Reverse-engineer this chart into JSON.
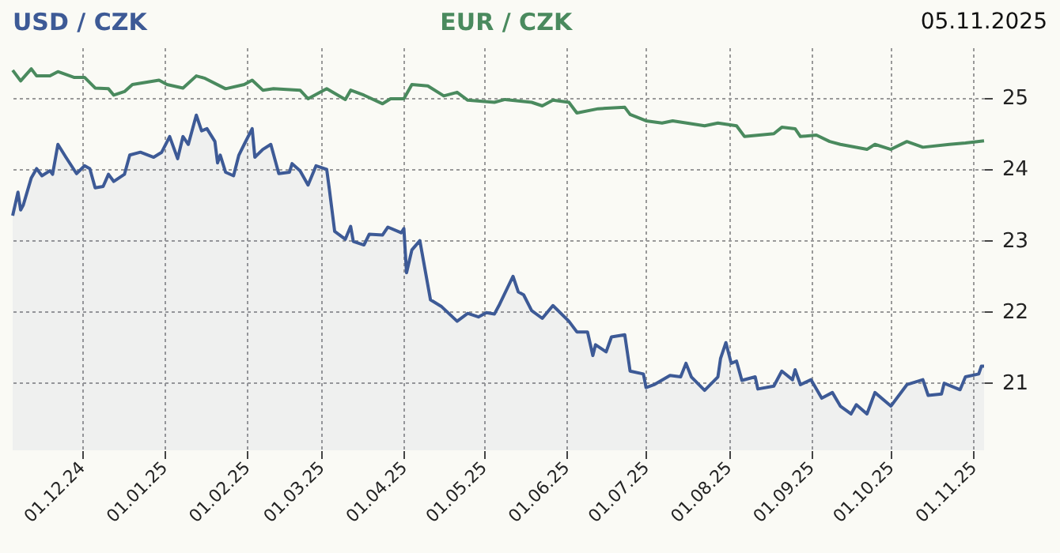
{
  "chart_data": {
    "type": "line",
    "title": "05.11.2025",
    "xlim": [
      "2024-11-05",
      "2025-11-05"
    ],
    "xticks": [
      {
        "value": "2024-12-01",
        "label": "01.12.24"
      },
      {
        "value": "2025-01-01",
        "label": "01.01.25"
      },
      {
        "value": "2025-02-01",
        "label": "01.02.25"
      },
      {
        "value": "2025-03-01",
        "label": "01.03.25"
      },
      {
        "value": "2025-04-01",
        "label": "01.04.25"
      },
      {
        "value": "2025-05-01",
        "label": "01.05.25"
      },
      {
        "value": "2025-06-01",
        "label": "01.06.25"
      },
      {
        "value": "2025-07-01",
        "label": "01.07.25"
      },
      {
        "value": "2025-08-01",
        "label": "01.08.25"
      },
      {
        "value": "2025-09-01",
        "label": "01.09.25"
      },
      {
        "value": "2025-10-01",
        "label": "01.10.25"
      },
      {
        "value": "2025-11-01",
        "label": "01.11.25"
      }
    ],
    "ylim": [
      20.05,
      25.7
    ],
    "yticks": [
      21,
      22,
      23,
      24,
      25
    ],
    "grid": true,
    "legend": "top",
    "marker": "none",
    "line_style": "solid",
    "series": [
      {
        "name": "USD / CZK",
        "type": "area",
        "color": "#3d5a96",
        "x": [
          "2024-11-05",
          "2024-11-07",
          "2024-11-08",
          "2024-11-09",
          "2024-11-12",
          "2024-11-14",
          "2024-11-16",
          "2024-11-19",
          "2024-11-20",
          "2024-11-22",
          "2024-11-25",
          "2024-11-29",
          "2024-12-02",
          "2024-12-04",
          "2024-12-06",
          "2024-12-09",
          "2024-12-11",
          "2024-12-13",
          "2024-12-17",
          "2024-12-19",
          "2024-12-23",
          "2024-12-28",
          "2024-12-31",
          "2025-01-03",
          "2025-01-06",
          "2025-01-08",
          "2025-01-10",
          "2025-01-13",
          "2025-01-15",
          "2025-01-17",
          "2025-01-20",
          "2025-01-21",
          "2025-01-22",
          "2025-01-24",
          "2025-01-27",
          "2025-01-29",
          "2025-01-31",
          "2025-02-03",
          "2025-02-04",
          "2025-02-07",
          "2025-02-10",
          "2025-02-13",
          "2025-02-17",
          "2025-02-18",
          "2025-02-21",
          "2025-02-24",
          "2025-02-27",
          "2025-03-03",
          "2025-03-04",
          "2025-03-06",
          "2025-03-10",
          "2025-03-12",
          "2025-03-13",
          "2025-03-17",
          "2025-03-19",
          "2025-03-24",
          "2025-03-26",
          "2025-03-31",
          "2025-04-01",
          "2025-04-02",
          "2025-04-04",
          "2025-04-07",
          "2025-04-11",
          "2025-04-15",
          "2025-04-21",
          "2025-04-25",
          "2025-04-29",
          "2025-05-02",
          "2025-05-05",
          "2025-05-07",
          "2025-05-12",
          "2025-05-14",
          "2025-05-16",
          "2025-05-19",
          "2025-05-23",
          "2025-05-27",
          "2025-06-02",
          "2025-06-05",
          "2025-06-09",
          "2025-06-11",
          "2025-06-12",
          "2025-06-16",
          "2025-06-18",
          "2025-06-23",
          "2025-06-25",
          "2025-06-30",
          "2025-07-01",
          "2025-07-04",
          "2025-07-10",
          "2025-07-14",
          "2025-07-16",
          "2025-07-18",
          "2025-07-23",
          "2025-07-28",
          "2025-07-29",
          "2025-07-31",
          "2025-08-02",
          "2025-08-04",
          "2025-08-06",
          "2025-08-11",
          "2025-08-12",
          "2025-08-18",
          "2025-08-21",
          "2025-08-25",
          "2025-08-26",
          "2025-08-28",
          "2025-09-01",
          "2025-09-05",
          "2025-09-09",
          "2025-09-12",
          "2025-09-16",
          "2025-09-18",
          "2025-09-22",
          "2025-09-25",
          "2025-10-01",
          "2025-10-07",
          "2025-10-13",
          "2025-10-15",
          "2025-10-20",
          "2025-10-21",
          "2025-10-27",
          "2025-10-29",
          "2025-11-03",
          "2025-11-04",
          "2025-11-05"
        ],
        "values": [
          23.34,
          23.67,
          23.42,
          23.49,
          23.87,
          24.0,
          23.9,
          23.97,
          23.92,
          24.34,
          24.16,
          23.93,
          24.04,
          24.0,
          23.73,
          23.75,
          23.92,
          23.82,
          23.92,
          24.19,
          24.23,
          24.16,
          24.23,
          24.45,
          24.14,
          24.45,
          24.34,
          24.75,
          24.53,
          24.56,
          24.38,
          24.08,
          24.19,
          23.95,
          23.9,
          24.19,
          24.34,
          24.56,
          24.16,
          24.27,
          24.34,
          23.93,
          23.95,
          24.07,
          23.97,
          23.77,
          24.04,
          23.99,
          23.71,
          23.12,
          23.01,
          23.19,
          22.98,
          22.93,
          23.08,
          23.07,
          23.18,
          23.1,
          23.16,
          22.54,
          22.86,
          22.99,
          22.16,
          22.07,
          21.86,
          21.97,
          21.92,
          21.98,
          21.96,
          22.1,
          22.49,
          22.27,
          22.23,
          22.01,
          21.9,
          22.08,
          21.86,
          21.71,
          21.71,
          21.38,
          21.53,
          21.43,
          21.64,
          21.67,
          21.16,
          21.12,
          20.93,
          20.97,
          21.1,
          21.08,
          21.27,
          21.08,
          20.89,
          21.08,
          21.34,
          21.56,
          21.27,
          21.3,
          21.03,
          21.08,
          20.91,
          20.95,
          21.16,
          21.04,
          21.18,
          20.97,
          21.04,
          20.78,
          20.86,
          20.67,
          20.56,
          20.69,
          20.56,
          20.86,
          20.67,
          20.97,
          21.04,
          20.82,
          20.84,
          20.99,
          20.9,
          21.08,
          21.12,
          21.23,
          21.23
        ]
      },
      {
        "name": "EUR / CZK",
        "type": "line",
        "color": "#4a8a5e",
        "x": [
          "2024-11-05",
          "2024-11-08",
          "2024-11-12",
          "2024-11-14",
          "2024-11-19",
          "2024-11-22",
          "2024-11-28",
          "2024-12-02",
          "2024-12-06",
          "2024-12-11",
          "2024-12-13",
          "2024-12-17",
          "2024-12-20",
          "2024-12-30",
          "2025-01-02",
          "2025-01-08",
          "2025-01-13",
          "2025-01-16",
          "2025-01-24",
          "2025-01-31",
          "2025-02-03",
          "2025-02-07",
          "2025-02-11",
          "2025-02-21",
          "2025-02-24",
          "2025-03-03",
          "2025-03-10",
          "2025-03-12",
          "2025-03-17",
          "2025-03-24",
          "2025-03-27",
          "2025-04-01",
          "2025-04-04",
          "2025-04-10",
          "2025-04-16",
          "2025-04-21",
          "2025-04-25",
          "2025-05-05",
          "2025-05-09",
          "2025-05-19",
          "2025-05-23",
          "2025-05-27",
          "2025-06-02",
          "2025-06-05",
          "2025-06-13",
          "2025-06-23",
          "2025-06-25",
          "2025-07-01",
          "2025-07-07",
          "2025-07-11",
          "2025-07-23",
          "2025-07-28",
          "2025-08-04",
          "2025-08-07",
          "2025-08-18",
          "2025-08-21",
          "2025-08-26",
          "2025-08-28",
          "2025-09-03",
          "2025-09-08",
          "2025-09-12",
          "2025-09-22",
          "2025-09-25",
          "2025-10-01",
          "2025-10-07",
          "2025-10-13",
          "2025-10-23",
          "2025-10-29",
          "2025-11-05"
        ],
        "values": [
          25.38,
          25.23,
          25.4,
          25.3,
          25.3,
          25.36,
          25.28,
          25.28,
          25.13,
          25.12,
          25.03,
          25.08,
          25.18,
          25.24,
          25.18,
          25.13,
          25.3,
          25.27,
          25.12,
          25.18,
          25.24,
          25.1,
          25.12,
          25.1,
          24.98,
          25.12,
          24.97,
          25.1,
          25.03,
          24.91,
          24.98,
          24.98,
          25.18,
          25.16,
          25.02,
          25.07,
          24.96,
          24.93,
          24.97,
          24.93,
          24.88,
          24.96,
          24.93,
          24.78,
          24.84,
          24.86,
          24.76,
          24.67,
          24.64,
          24.67,
          24.6,
          24.64,
          24.6,
          24.45,
          24.49,
          24.58,
          24.56,
          24.45,
          24.47,
          24.38,
          24.34,
          24.27,
          24.34,
          24.27,
          24.38,
          24.3,
          24.34,
          24.36,
          24.39
        ]
      }
    ]
  }
}
